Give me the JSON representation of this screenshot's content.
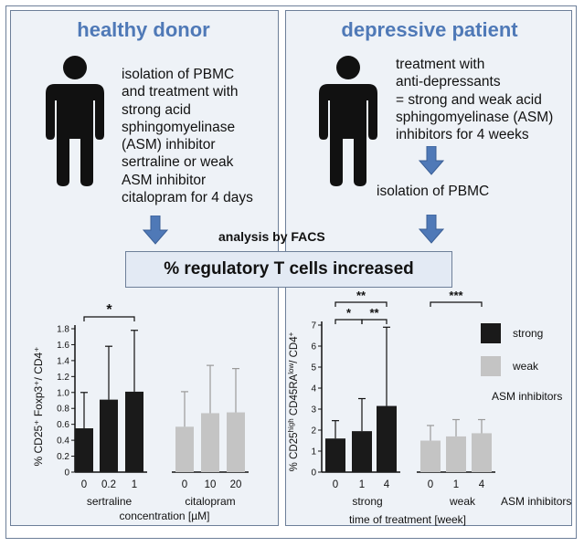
{
  "left_panel": {
    "title": "healthy donor",
    "lines": [
      "isolation of PBMC",
      "and treatment with",
      "strong acid",
      "sphingomyelinase",
      "(ASM) inhibitor",
      "sertraline or weak",
      "ASM inhibitor",
      "citalopram for 4 days"
    ]
  },
  "right_panel": {
    "title": "depressive patient",
    "lines": [
      "treatment with",
      "anti-depressants",
      "= strong and weak acid",
      "sphingomyelinase (ASM)",
      "inhibitors for 4 weeks"
    ],
    "step2": "isolation of PBMC"
  },
  "shared": {
    "analysis": "analysis by FACS",
    "result": "% regulatory T cells increased"
  },
  "colors": {
    "strong": "#1a1a1a",
    "weak": "#c4c4c4",
    "accent": "#4f79b7",
    "panel_bg": "#eef2f7"
  },
  "chart_data": [
    {
      "type": "bar",
      "ylabel": "% CD25⁺ Foxp3⁺/ CD4⁺",
      "xlabel": "concentration [µM]",
      "ylim": [
        0,
        1.8
      ],
      "yticks": [
        "0",
        "0.2",
        "0.4",
        "0.6",
        "0.8",
        "1.0",
        "1.2",
        "1.4",
        "1.6",
        "1.8"
      ],
      "groups": [
        {
          "name": "sertraline",
          "kind": "strong",
          "categories": [
            "0",
            "0.2",
            "1"
          ],
          "values": [
            0.55,
            0.91,
            1.01
          ],
          "errors": [
            0.45,
            0.67,
            0.77
          ]
        },
        {
          "name": "citalopram",
          "kind": "weak",
          "categories": [
            "0",
            "10",
            "20"
          ],
          "values": [
            0.57,
            0.74,
            0.75
          ],
          "errors": [
            0.44,
            0.6,
            0.55
          ]
        }
      ],
      "significance": [
        {
          "from": 0,
          "to": 2,
          "label": "*"
        }
      ]
    },
    {
      "type": "bar",
      "ylabel": "% CD25high CD45RAlow/ CD4⁺",
      "ylabel_parts": {
        "a": "% CD25",
        "b": "high",
        "c": " CD45RA",
        "d": "low",
        "e": "/ CD4",
        "f": "+"
      },
      "xlabel": "time of treatment [week]",
      "ylim": [
        0,
        7
      ],
      "yticks": [
        "0",
        "1",
        "2",
        "3",
        "4",
        "5",
        "6",
        "7"
      ],
      "groups": [
        {
          "name": "strong",
          "kind": "strong",
          "categories": [
            "0",
            "1",
            "4"
          ],
          "values": [
            1.6,
            1.95,
            3.15
          ],
          "errors": [
            0.85,
            1.55,
            3.75
          ]
        },
        {
          "name": "weak",
          "kind": "weak",
          "categories": [
            "0",
            "1",
            "4"
          ],
          "values": [
            1.5,
            1.7,
            1.85
          ],
          "errors": [
            0.72,
            0.8,
            0.65
          ]
        }
      ],
      "group_suffix": "ASM inhibitors",
      "legend": [
        {
          "label": "strong",
          "kind": "strong"
        },
        {
          "label": "weak",
          "kind": "weak"
        }
      ],
      "legend_title": "ASM inhibitors",
      "significance": [
        {
          "from": 0,
          "to": 1,
          "label": "*"
        },
        {
          "from": 1,
          "to": 2,
          "label": "**"
        },
        {
          "from": 0,
          "to": 2,
          "label": "**"
        },
        {
          "from": 3,
          "to": 5,
          "label": "***"
        }
      ]
    }
  ]
}
